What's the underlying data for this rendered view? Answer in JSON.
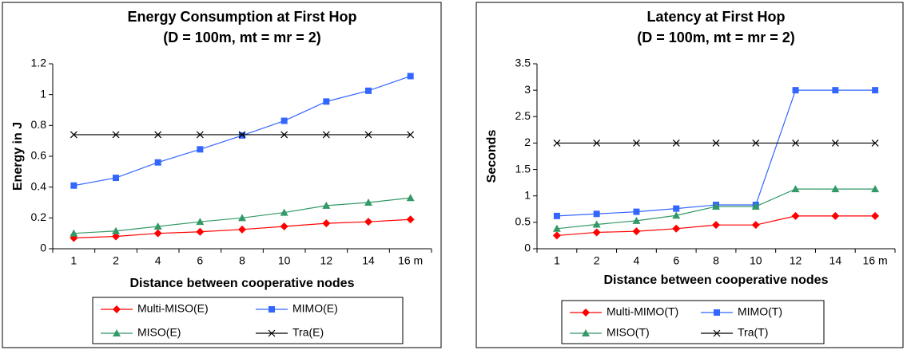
{
  "chart_data": [
    {
      "type": "line",
      "title": [
        "Energy Consumption at First Hop",
        "(D = 100m, mt = mr = 2)"
      ],
      "x_label": "Distance between cooperative nodes",
      "y_label": "Energy in J",
      "categories": [
        "1",
        "2",
        "4",
        "6",
        "8",
        "10",
        "12",
        "14",
        "16 m"
      ],
      "ylim": [
        0,
        1.2
      ],
      "yticks": [
        0,
        0.2,
        0.4,
        0.6,
        0.8,
        1,
        1.2
      ],
      "series": [
        {
          "name": "Multi-MISO(E)",
          "color": "#ff0000",
          "marker": "diamond",
          "values": [
            0.07,
            0.08,
            0.1,
            0.11,
            0.125,
            0.145,
            0.165,
            0.175,
            0.19
          ]
        },
        {
          "name": "MIMO(E)",
          "color": "#3366ff",
          "marker": "square",
          "values": [
            0.41,
            0.46,
            0.56,
            0.645,
            0.735,
            0.83,
            0.955,
            1.025,
            1.12
          ]
        },
        {
          "name": "MISO(E)",
          "color": "#339966",
          "marker": "triangle",
          "values": [
            0.1,
            0.115,
            0.145,
            0.175,
            0.2,
            0.235,
            0.28,
            0.3,
            0.33
          ]
        },
        {
          "name": "Tra(E)",
          "color": "#000000",
          "marker": "x",
          "values": [
            0.74,
            0.74,
            0.74,
            0.74,
            0.74,
            0.74,
            0.74,
            0.74,
            0.74
          ]
        }
      ]
    },
    {
      "type": "line",
      "title": [
        "Latency at First Hop",
        "(D = 100m, mt = mr = 2)"
      ],
      "x_label": "Distance between cooperative nodes",
      "y_label": "Seconds",
      "categories": [
        "1",
        "2",
        "4",
        "6",
        "8",
        "10",
        "12",
        "14",
        "16 m"
      ],
      "ylim": [
        0,
        3.5
      ],
      "yticks": [
        0,
        0.5,
        1,
        1.5,
        2,
        2.5,
        3,
        3.5
      ],
      "series": [
        {
          "name": "Multi-MIMO(T)",
          "color": "#ff0000",
          "marker": "diamond",
          "values": [
            0.25,
            0.31,
            0.33,
            0.38,
            0.45,
            0.45,
            0.62,
            0.62,
            0.62
          ]
        },
        {
          "name": "MIMO(T)",
          "color": "#3366ff",
          "marker": "square",
          "values": [
            0.62,
            0.66,
            0.7,
            0.76,
            0.83,
            0.83,
            3,
            3,
            3
          ]
        },
        {
          "name": "MISO(T)",
          "color": "#339966",
          "marker": "triangle",
          "values": [
            0.38,
            0.46,
            0.53,
            0.63,
            0.8,
            0.8,
            1.13,
            1.13,
            1.13
          ]
        },
        {
          "name": "Tra(T)",
          "color": "#000000",
          "marker": "x",
          "values": [
            2,
            2,
            2,
            2,
            2,
            2,
            2,
            2,
            2
          ]
        }
      ]
    }
  ]
}
